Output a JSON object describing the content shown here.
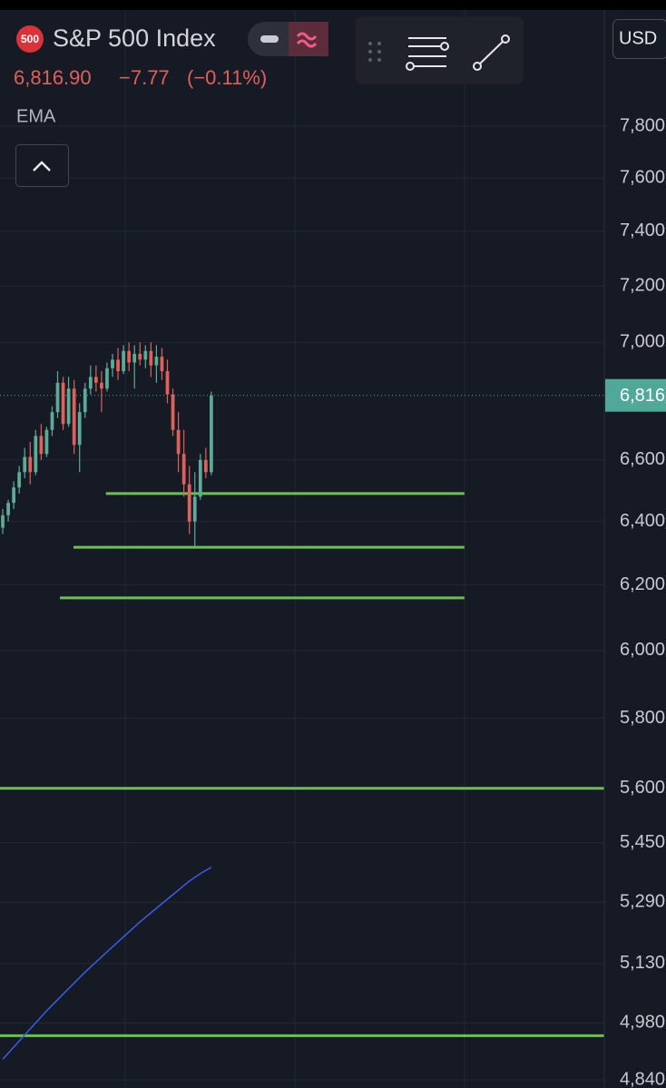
{
  "chart_data": {
    "type": "candlestick",
    "header": {
      "badge": "500",
      "title": "S&P 500 Index",
      "price": "6,816.90",
      "change": "−7.77",
      "change_pct": "(−0.11%)",
      "indicator": "EMA",
      "currency": "USD"
    },
    "log_scale": true,
    "grid": true,
    "ylim": [
      4840,
      7800
    ],
    "yticks": [
      {
        "value": 4840,
        "label": "4,840"
      },
      {
        "value": 4980,
        "label": "4,980"
      },
      {
        "value": 5130,
        "label": "5,130"
      },
      {
        "value": 5290,
        "label": "5,290"
      },
      {
        "value": 5450,
        "label": "5,450"
      },
      {
        "value": 5600,
        "label": "5,600"
      },
      {
        "value": 5800,
        "label": "5,800"
      },
      {
        "value": 6000,
        "label": "6,000"
      },
      {
        "value": 6200,
        "label": "6,200"
      },
      {
        "value": 6400,
        "label": "6,400"
      },
      {
        "value": 6600,
        "label": "6,600"
      },
      {
        "value": 7000,
        "label": "7,000"
      },
      {
        "value": 7200,
        "label": "7,200"
      },
      {
        "value": 7400,
        "label": "7,400"
      },
      {
        "value": 7600,
        "label": "7,600"
      },
      {
        "value": 7800,
        "label": "7,800"
      }
    ],
    "xlim": [
      -0.5,
      109.6
    ],
    "up_color": "#5cab96",
    "down_color": "#e0605a",
    "open": [
      6380,
      6420,
      6460,
      6510,
      6560,
      6610,
      6560,
      6680,
      6620,
      6700,
      6760,
      6860,
      6720,
      6840,
      6650,
      6760,
      6840,
      6880,
      6860,
      6840,
      6910,
      6940,
      6900,
      6970,
      6930,
      6960,
      6940,
      6970,
      6920,
      6950,
      6900,
      6820,
      6700,
      6620,
      6520,
      6400,
      6480,
      6600,
      6560
    ],
    "high": [
      6440,
      6470,
      6530,
      6580,
      6640,
      6660,
      6700,
      6720,
      6710,
      6780,
      6900,
      6880,
      6880,
      6870,
      6790,
      6860,
      6920,
      6920,
      6900,
      6930,
      6960,
      6980,
      6990,
      7000,
      6990,
      7000,
      6990,
      7000,
      6990,
      6980,
      6940,
      6840,
      6760,
      6700,
      6580,
      6560,
      6620,
      6640,
      6830
    ],
    "low": [
      6360,
      6400,
      6440,
      6490,
      6540,
      6520,
      6550,
      6600,
      6610,
      6680,
      6740,
      6700,
      6710,
      6620,
      6560,
      6740,
      6820,
      6830,
      6760,
      6830,
      6880,
      6870,
      6890,
      6900,
      6840,
      6920,
      6910,
      6880,
      6860,
      6870,
      6790,
      6680,
      6560,
      6480,
      6360,
      6320,
      6470,
      6540,
      6550
    ],
    "close": [
      6420,
      6460,
      6510,
      6560,
      6610,
      6560,
      6680,
      6620,
      6700,
      6760,
      6860,
      6720,
      6840,
      6650,
      6760,
      6840,
      6880,
      6860,
      6840,
      6910,
      6940,
      6900,
      6970,
      6930,
      6960,
      6940,
      6970,
      6920,
      6950,
      6900,
      6820,
      6700,
      6620,
      6520,
      6400,
      6480,
      6600,
      6560,
      6816.9
    ],
    "ema": {
      "name": "EMA",
      "color": "#3b5de6",
      "values": [
        4890,
        4905,
        4920,
        4935,
        4950,
        4965,
        4980,
        4995,
        5010,
        5024,
        5038,
        5052,
        5066,
        5080,
        5094,
        5108,
        5121,
        5134,
        5147,
        5160,
        5173,
        5186,
        5199,
        5212,
        5225,
        5238,
        5250,
        5262,
        5274,
        5286,
        5298,
        5310,
        5322,
        5334,
        5346,
        5356,
        5366,
        5375,
        5383
      ]
    },
    "levels": {
      "color": "#6cbf58",
      "items": [
        {
          "value": 6490,
          "start": 18.8,
          "end": 84.1
        },
        {
          "value": 6318,
          "start": 12.9,
          "end": 84.1
        },
        {
          "value": 6160,
          "start": 10.4,
          "end": 84.1
        },
        {
          "value": 5600,
          "start": -0.5,
          "end": 109.6
        },
        {
          "value": 4948,
          "start": -0.5,
          "end": 109.6
        }
      ]
    },
    "last_color": "#4fa898"
  }
}
